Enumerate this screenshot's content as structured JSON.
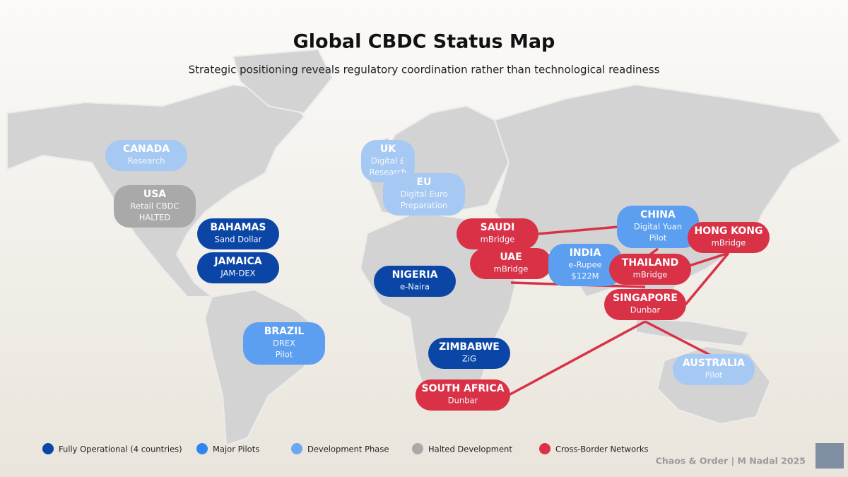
{
  "title": "Global CBDC Status Map",
  "subtitle": "Strategic positioning reveals regulatory coordination rather than technological readiness",
  "countries": [
    {
      "name": "CANADA",
      "details": [
        "Research"
      ],
      "color": "#a6c9f3"
    },
    {
      "name": "USA",
      "details": [
        "Retail CBDC",
        "HALTED"
      ],
      "color": "#a9a9a9"
    },
    {
      "name": "BAHAMAS",
      "details": [
        "Sand Dollar"
      ],
      "color": "#0b46a6"
    },
    {
      "name": "JAMAICA",
      "details": [
        "JAM-DEX"
      ],
      "color": "#0b46a6"
    },
    {
      "name": "BRAZIL",
      "details": [
        "DREX",
        "Pilot"
      ],
      "color": "#5c9ef0"
    },
    {
      "name": "UK",
      "details": [
        "Digital £",
        "Research"
      ],
      "color": "#a6c9f3"
    },
    {
      "name": "EU",
      "details": [
        "Digital Euro",
        "Preparation"
      ],
      "color": "#a6c9f3"
    },
    {
      "name": "NIGERIA",
      "details": [
        "e-Naira"
      ],
      "color": "#0b46a6"
    },
    {
      "name": "ZIMBABWE",
      "details": [
        "ZiG"
      ],
      "color": "#0b46a6"
    },
    {
      "name": "SOUTH AFRICA",
      "details": [
        "Dunbar"
      ],
      "color": "#d93247"
    },
    {
      "name": "SAUDI",
      "details": [
        "mBridge"
      ],
      "color": "#d93247"
    },
    {
      "name": "UAE",
      "details": [
        "mBridge"
      ],
      "color": "#d93247"
    },
    {
      "name": "INDIA",
      "details": [
        "e-Rupee",
        "$122M"
      ],
      "color": "#5c9ef0"
    },
    {
      "name": "CHINA",
      "details": [
        "Digital Yuan",
        "Pilot"
      ],
      "color": "#5c9ef0"
    },
    {
      "name": "HONG KONG",
      "details": [
        "mBridge"
      ],
      "color": "#d93247"
    },
    {
      "name": "THAILAND",
      "details": [
        "mBridge"
      ],
      "color": "#d93247"
    },
    {
      "name": "SINGAPORE",
      "details": [
        "Dunbar"
      ],
      "color": "#d93247"
    },
    {
      "name": "AUSTRALIA",
      "details": [
        "Pilot"
      ],
      "color": "#a6c9f3"
    }
  ],
  "legend": [
    {
      "label": "Fully Operational (4 countries)",
      "color": "#0b46a6"
    },
    {
      "label": "Major Pilots",
      "color": "#2f86f0"
    },
    {
      "label": "Development Phase",
      "color": "#6aa8f2"
    },
    {
      "label": "Halted Development",
      "color": "#a9a9a9"
    },
    {
      "label": "Cross-Border Networks",
      "color": "#d93247"
    }
  ],
  "credit": "Chaos & Order | M Nadal 2025"
}
